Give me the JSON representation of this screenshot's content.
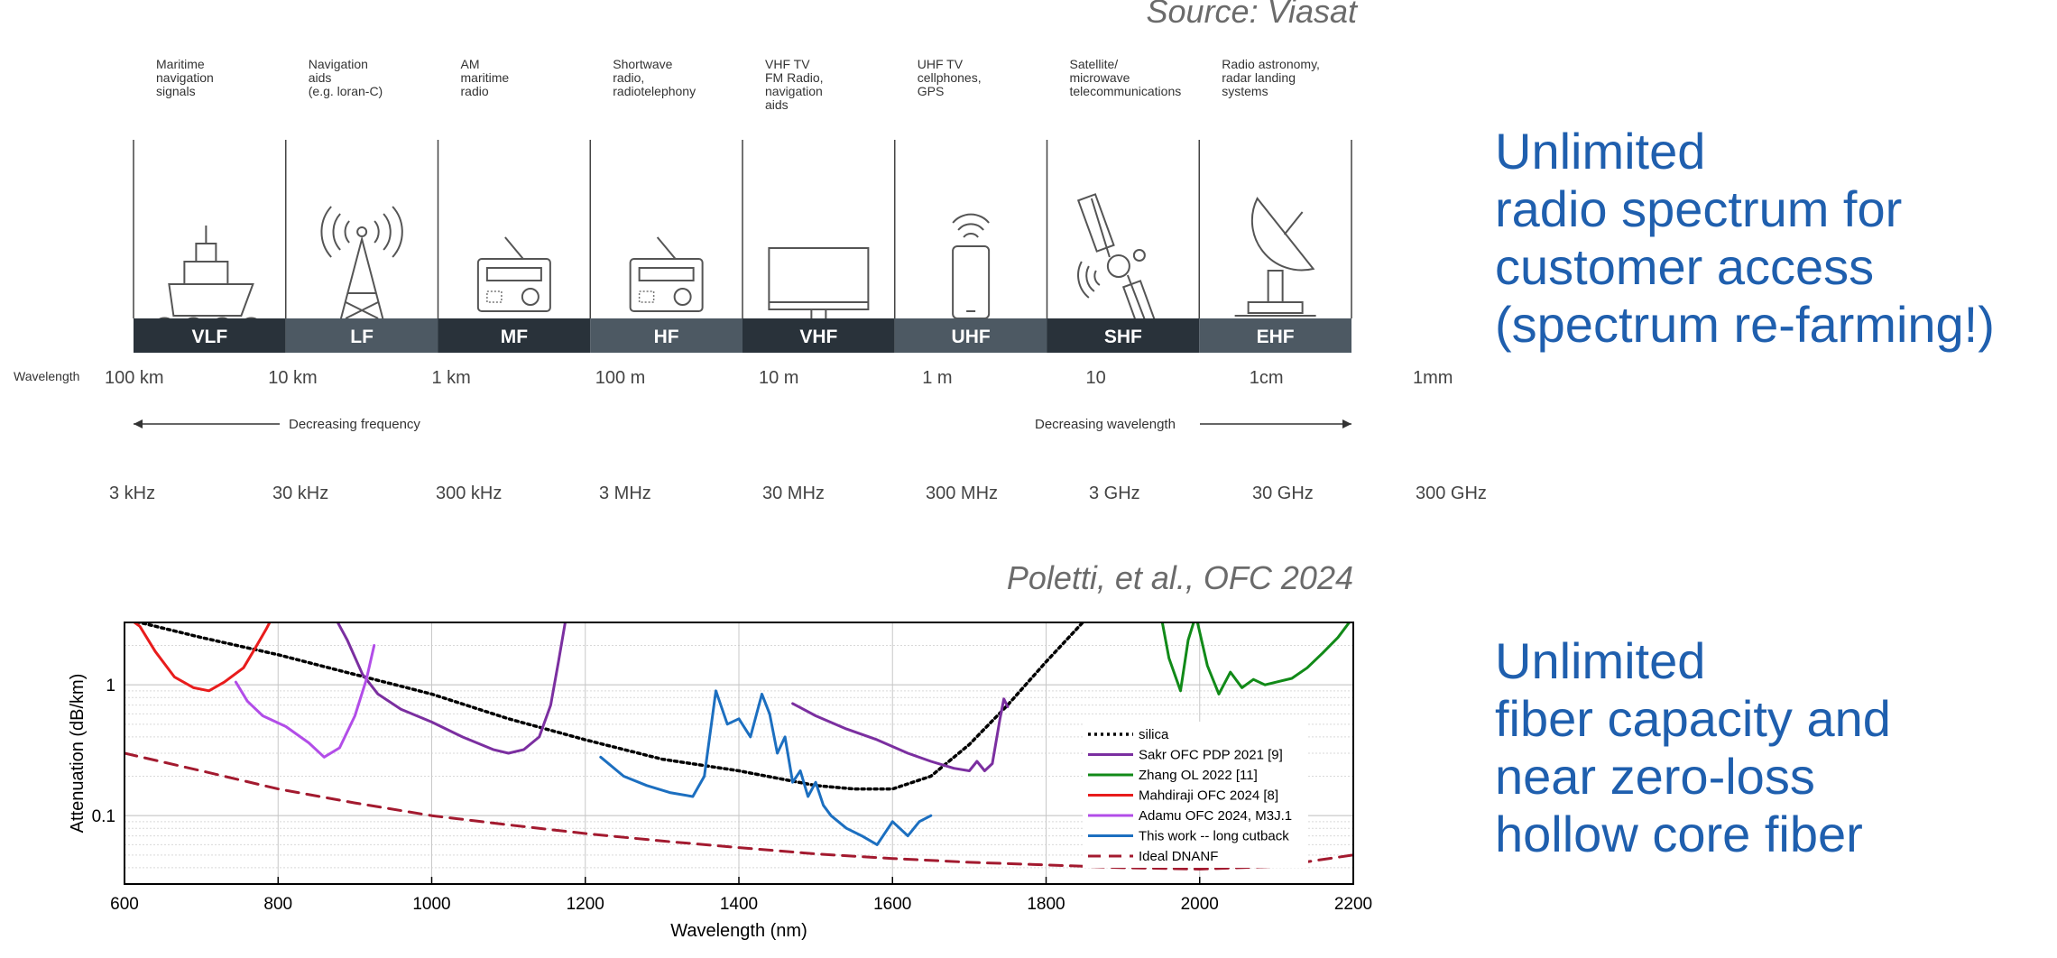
{
  "sources": {
    "top": "Source: Viasat",
    "bottom": "Poletti, et al., OFC 2024"
  },
  "bullets": {
    "radio": [
      "Unlimited",
      "radio spectrum for",
      "customer access",
      "(spectrum re-farming!)"
    ],
    "fiber": [
      "Unlimited",
      "fiber capacity and",
      "near zero-loss",
      "hollow core fiber"
    ]
  },
  "spectrum": {
    "bands": [
      {
        "label": "VLF",
        "desc": [
          "Maritime",
          "navigation",
          "signals"
        ],
        "icon": "ship"
      },
      {
        "label": "LF",
        "desc": [
          "Navigation",
          "aids",
          "(e.g. loran-C)"
        ],
        "icon": "tower"
      },
      {
        "label": "MF",
        "desc": [
          "AM",
          "maritime",
          "radio"
        ],
        "icon": "radio"
      },
      {
        "label": "HF",
        "desc": [
          "Shortwave",
          "radio,",
          "radiotelephony"
        ],
        "icon": "radio"
      },
      {
        "label": "VHF",
        "desc": [
          "VHF TV",
          "FM Radio,",
          "navigation",
          "aids"
        ],
        "icon": "tv"
      },
      {
        "label": "UHF",
        "desc": [
          "UHF TV",
          "cellphones,",
          "GPS"
        ],
        "icon": "phone"
      },
      {
        "label": "SHF",
        "desc": [
          "Satellite/",
          "microwave",
          "telecommunications"
        ],
        "icon": "satellite"
      },
      {
        "label": "EHF",
        "desc": [
          "Radio astronomy,",
          "radar landing",
          "systems"
        ],
        "icon": "dish"
      }
    ],
    "wavelength_label": "Wavelength",
    "wavelengths": [
      "100 km",
      "10 km",
      "1 km",
      "100 m",
      "10 m",
      "1 m",
      "10",
      "1cm",
      "1mm"
    ],
    "frequencies": [
      "3 kHz",
      "30 kHz",
      "300 kHz",
      "3 MHz",
      "30 MHz",
      "300 MHz",
      "3 GHz",
      "30 GHz",
      "300 GHz"
    ],
    "arrow_left": "Decreasing frequency",
    "arrow_right": "Decreasing wavelength",
    "colors": {
      "dark": "#29323a",
      "light": "#4d5963"
    }
  },
  "chart_data": {
    "type": "line",
    "title": "",
    "xlabel": "Wavelength (nm)",
    "ylabel": "Attenuation (dB/km)",
    "xlim": [
      600,
      2200
    ],
    "ylim": [
      0.03,
      3
    ],
    "yscale": "log",
    "xticks": [
      600,
      800,
      1000,
      1200,
      1400,
      1600,
      1800,
      2000,
      2200
    ],
    "yticks": [
      {
        "value": 0.1,
        "label": "0.1"
      },
      {
        "value": 1,
        "label": "1"
      }
    ],
    "legend_position": "lower-right",
    "series": [
      {
        "name": "silica",
        "color": "#000000",
        "style": "dotted",
        "points": [
          [
            600,
            3.2
          ],
          [
            700,
            2.3
          ],
          [
            800,
            1.7
          ],
          [
            900,
            1.2
          ],
          [
            1000,
            0.85
          ],
          [
            1100,
            0.55
          ],
          [
            1200,
            0.38
          ],
          [
            1300,
            0.27
          ],
          [
            1400,
            0.22
          ],
          [
            1500,
            0.17
          ],
          [
            1550,
            0.16
          ],
          [
            1600,
            0.16
          ],
          [
            1650,
            0.2
          ],
          [
            1700,
            0.35
          ],
          [
            1750,
            0.7
          ],
          [
            1800,
            1.5
          ],
          [
            1850,
            3.1
          ]
        ]
      },
      {
        "name": "Sakr OFC PDP 2021 [9]",
        "color": "#7b2fa0",
        "style": "solid",
        "segments": [
          [
            [
              875,
              3.2
            ],
            [
              890,
              2.2
            ],
            [
              910,
              1.2
            ],
            [
              930,
              0.85
            ],
            [
              960,
              0.65
            ],
            [
              1000,
              0.52
            ],
            [
              1040,
              0.4
            ],
            [
              1080,
              0.32
            ],
            [
              1100,
              0.3
            ],
            [
              1120,
              0.32
            ],
            [
              1140,
              0.4
            ],
            [
              1155,
              0.7
            ],
            [
              1165,
              1.5
            ],
            [
              1175,
              3.3
            ]
          ],
          [
            [
              1470,
              0.72
            ],
            [
              1500,
              0.58
            ],
            [
              1540,
              0.46
            ],
            [
              1580,
              0.38
            ],
            [
              1620,
              0.3
            ],
            [
              1650,
              0.26
            ],
            [
              1680,
              0.23
            ],
            [
              1700,
              0.22
            ],
            [
              1710,
              0.26
            ],
            [
              1720,
              0.22
            ],
            [
              1730,
              0.25
            ],
            [
              1740,
              0.55
            ],
            [
              1745,
              0.78
            ],
            [
              1750,
              0.68
            ]
          ]
        ]
      },
      {
        "name": "Zhang OL 2022 [11]",
        "color": "#118a18",
        "style": "solid",
        "points": [
          [
            1950,
            3.3
          ],
          [
            1960,
            1.6
          ],
          [
            1975,
            0.9
          ],
          [
            1985,
            2.2
          ],
          [
            1995,
            3.4
          ],
          [
            2010,
            1.4
          ],
          [
            2025,
            0.85
          ],
          [
            2040,
            1.25
          ],
          [
            2055,
            0.95
          ],
          [
            2070,
            1.1
          ],
          [
            2085,
            1.0
          ],
          [
            2100,
            1.05
          ],
          [
            2120,
            1.12
          ],
          [
            2140,
            1.35
          ],
          [
            2160,
            1.75
          ],
          [
            2180,
            2.3
          ],
          [
            2200,
            3.3
          ]
        ]
      },
      {
        "name": "Mahdiraji OFC 2024 [8]",
        "color": "#e81c1c",
        "style": "solid",
        "points": [
          [
            600,
            3.4
          ],
          [
            620,
            2.8
          ],
          [
            640,
            1.8
          ],
          [
            665,
            1.15
          ],
          [
            690,
            0.95
          ],
          [
            710,
            0.9
          ],
          [
            730,
            1.05
          ],
          [
            755,
            1.35
          ],
          [
            770,
            1.9
          ],
          [
            785,
            2.7
          ],
          [
            795,
            3.5
          ]
        ]
      },
      {
        "name": "Adamu OFC 2024, M3J.1",
        "color": "#b24de8",
        "style": "solid",
        "points": [
          [
            745,
            1.05
          ],
          [
            760,
            0.75
          ],
          [
            780,
            0.58
          ],
          [
            810,
            0.48
          ],
          [
            840,
            0.36
          ],
          [
            860,
            0.28
          ],
          [
            880,
            0.33
          ],
          [
            900,
            0.58
          ],
          [
            915,
            1.1
          ],
          [
            925,
            2.0
          ]
        ]
      },
      {
        "name": "This work -- long cutback",
        "color": "#1c6fc0",
        "style": "solid",
        "points": [
          [
            1220,
            0.28
          ],
          [
            1250,
            0.2
          ],
          [
            1280,
            0.17
          ],
          [
            1310,
            0.15
          ],
          [
            1340,
            0.14
          ],
          [
            1355,
            0.2
          ],
          [
            1370,
            0.9
          ],
          [
            1385,
            0.5
          ],
          [
            1400,
            0.55
          ],
          [
            1415,
            0.4
          ],
          [
            1430,
            0.85
          ],
          [
            1440,
            0.6
          ],
          [
            1450,
            0.3
          ],
          [
            1460,
            0.4
          ],
          [
            1470,
            0.18
          ],
          [
            1480,
            0.22
          ],
          [
            1490,
            0.14
          ],
          [
            1500,
            0.18
          ],
          [
            1510,
            0.12
          ],
          [
            1520,
            0.1
          ],
          [
            1540,
            0.08
          ],
          [
            1560,
            0.07
          ],
          [
            1580,
            0.06
          ],
          [
            1600,
            0.09
          ],
          [
            1620,
            0.07
          ],
          [
            1635,
            0.09
          ],
          [
            1650,
            0.1
          ]
        ]
      },
      {
        "name": "Ideal DNANF",
        "color": "#a31a2f",
        "style": "dashed",
        "points": [
          [
            600,
            0.3
          ],
          [
            700,
            0.22
          ],
          [
            800,
            0.16
          ],
          [
            900,
            0.125
          ],
          [
            1000,
            0.1
          ],
          [
            1100,
            0.085
          ],
          [
            1200,
            0.073
          ],
          [
            1300,
            0.064
          ],
          [
            1400,
            0.057
          ],
          [
            1500,
            0.051
          ],
          [
            1600,
            0.047
          ],
          [
            1700,
            0.044
          ],
          [
            1800,
            0.042
          ],
          [
            1900,
            0.04
          ],
          [
            2000,
            0.039
          ],
          [
            2100,
            0.041
          ],
          [
            2200,
            0.05
          ]
        ]
      }
    ]
  }
}
